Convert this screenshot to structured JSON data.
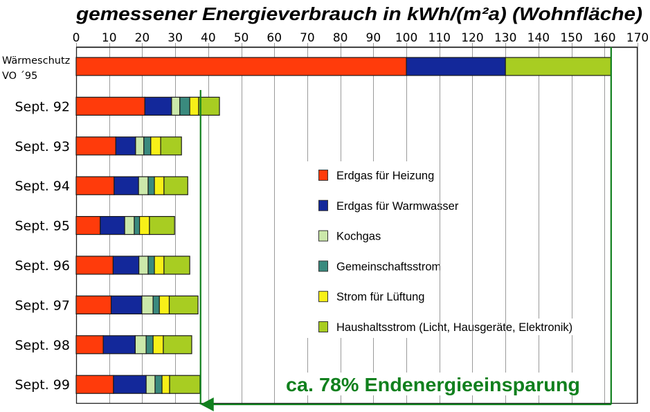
{
  "chart_data": {
    "type": "bar",
    "orientation": "horizontal",
    "stacked": true,
    "title": "gemessener Energieverbrauch in kWh/(m²a) (Wohnfläche)",
    "xlabel": "",
    "ylabel": "",
    "xlim": [
      0,
      170
    ],
    "x_ticks": [
      0,
      10,
      20,
      30,
      40,
      50,
      60,
      70,
      80,
      90,
      100,
      110,
      120,
      130,
      140,
      150,
      160,
      170
    ],
    "grid": true,
    "legend_position": "center-right",
    "categories": [
      {
        "lines": [
          "Wärmeschutz",
          "VO ´95"
        ]
      },
      {
        "lines": [
          "Sept. 92"
        ]
      },
      {
        "lines": [
          "Sept. 93"
        ]
      },
      {
        "lines": [
          "Sept. 94"
        ]
      },
      {
        "lines": [
          "Sept. 95"
        ]
      },
      {
        "lines": [
          "Sept. 96"
        ]
      },
      {
        "lines": [
          "Sept. 97"
        ]
      },
      {
        "lines": [
          "Sept. 98"
        ]
      },
      {
        "lines": [
          "Sept. 99"
        ]
      }
    ],
    "series": [
      {
        "name": "Erdgas für Heizung",
        "color": "#ff3b0b",
        "values": [
          100,
          20.8,
          12.0,
          11.5,
          7.3,
          11.2,
          10.6,
          8.2,
          11.3
        ]
      },
      {
        "name": "Erdgas für Warmwasser",
        "color": "#13289a",
        "values": [
          30,
          8.1,
          6.0,
          7.4,
          7.4,
          7.8,
          9.3,
          9.7,
          9.9
        ]
      },
      {
        "name": "Kochgas",
        "color": "#cbe8aa",
        "values": [
          0,
          2.5,
          2.5,
          2.9,
          2.9,
          2.8,
          3.4,
          3.3,
          2.7
        ]
      },
      {
        "name": "Gemeinschaftsstrom",
        "color": "#3a8a7e",
        "values": [
          0,
          3.0,
          2.1,
          1.9,
          1.6,
          1.9,
          1.9,
          2.1,
          2.1
        ]
      },
      {
        "name": "Strom für Lüftung",
        "color": "#f8f018",
        "values": [
          0,
          2.7,
          3.0,
          2.9,
          3.0,
          2.9,
          3.0,
          3.1,
          2.3
        ]
      },
      {
        "name": "Haushaltsstrom (Licht, Hausgeräte, Elektronik)",
        "color": "#a8cd22",
        "values": [
          32,
          6.3,
          6.3,
          7.2,
          7.6,
          7.8,
          8.7,
          8.6,
          9.2
        ]
      }
    ],
    "annotations": [
      {
        "text": "ca. 78% Endenergieeinsparung",
        "color": "#11801e",
        "from_value": 162,
        "to_value": 36
      }
    ]
  }
}
